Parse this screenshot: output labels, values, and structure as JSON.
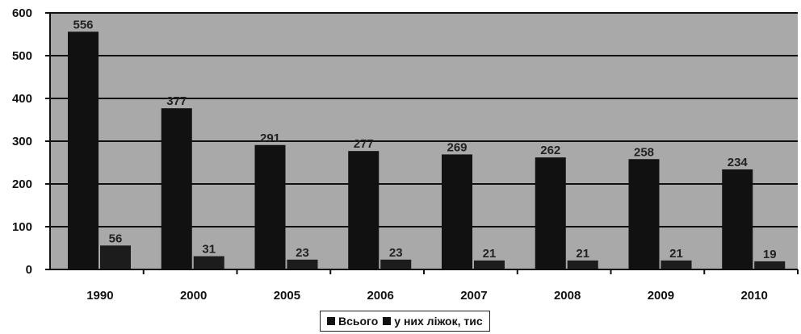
{
  "chart_data": {
    "type": "bar",
    "categories": [
      "1990",
      "2000",
      "2005",
      "2006",
      "2007",
      "2008",
      "2009",
      "2010"
    ],
    "series": [
      {
        "name": "Всього",
        "values": [
          556,
          377,
          291,
          277,
          269,
          262,
          258,
          234
        ],
        "color": "#111111"
      },
      {
        "name": "у них ліжок, тис",
        "values": [
          56,
          31,
          23,
          23,
          21,
          21,
          21,
          19
        ],
        "color": "#1c1c1c"
      }
    ],
    "y_ticks": [
      "0",
      "100",
      "200",
      "300",
      "400",
      "500",
      "600"
    ],
    "ylim": [
      0,
      600
    ],
    "grid": true,
    "legend_position": "bottom",
    "colors": {
      "plot_background": "#a9a9a9",
      "bars": "#111111",
      "gridlines": "#111111"
    }
  }
}
